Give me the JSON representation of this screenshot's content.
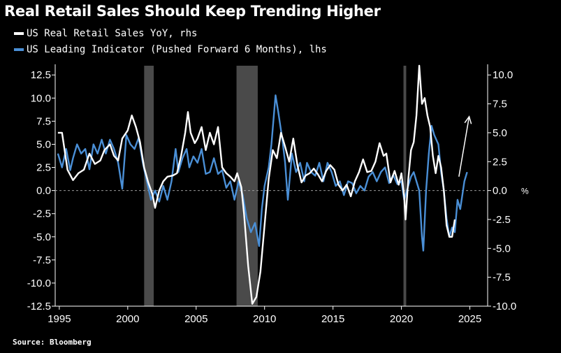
{
  "chart_data": {
    "type": "line",
    "title": "Real Retail Sales Should Keep Trending Higher",
    "source": "Source: Bloomberg",
    "x_range": [
      1994.7,
      2026.3
    ],
    "x_ticks": [
      1995,
      2000,
      2005,
      2010,
      2015,
      2020,
      2025
    ],
    "left_axis": {
      "ticks": [
        12.5,
        10.0,
        7.5,
        5.0,
        2.5,
        0.0,
        -2.5,
        -5.0,
        -7.5,
        -10.0,
        -12.5
      ],
      "range": [
        -12.5,
        13.5
      ]
    },
    "right_axis": {
      "ticks": [
        10.0,
        7.5,
        5.0,
        2.5,
        0.0,
        -2.5,
        -5.0,
        -7.5,
        -10.0
      ],
      "range": [
        -10.0,
        10.8
      ],
      "unit": "%"
    },
    "recessions": [
      [
        2001.2,
        2001.9
      ],
      [
        2007.95,
        2009.5
      ],
      [
        2020.15,
        2020.35
      ]
    ],
    "zero_line": true,
    "series": [
      {
        "name": "US Real Retail Sales YoY, rhs",
        "axis": "right",
        "color": "#ffffff",
        "points": [
          [
            1994.9,
            5
          ],
          [
            1995.2,
            5
          ],
          [
            1995.6,
            1.8
          ],
          [
            1996.0,
            0.9
          ],
          [
            1996.4,
            1.5
          ],
          [
            1996.8,
            1.8
          ],
          [
            1997.2,
            3.2
          ],
          [
            1997.6,
            2.3
          ],
          [
            1998.0,
            2.6
          ],
          [
            1998.3,
            3.5
          ],
          [
            1998.7,
            4
          ],
          [
            1999.0,
            3.0
          ],
          [
            1999.3,
            2.6
          ],
          [
            1999.6,
            4.5
          ],
          [
            2000.0,
            5.2
          ],
          [
            2000.3,
            6.5
          ],
          [
            2000.6,
            5.5
          ],
          [
            2000.9,
            4.2
          ],
          [
            2001.2,
            2
          ],
          [
            2001.5,
            0.7
          ],
          [
            2001.8,
            -0.3
          ],
          [
            2002.0,
            -1.5
          ],
          [
            2002.3,
            0
          ],
          [
            2002.6,
            0.8
          ],
          [
            2002.9,
            1.2
          ],
          [
            2003.3,
            1.3
          ],
          [
            2003.6,
            1.5
          ],
          [
            2003.9,
            3
          ],
          [
            2004.2,
            5
          ],
          [
            2004.4,
            6.8
          ],
          [
            2004.6,
            5
          ],
          [
            2004.9,
            4.1
          ],
          [
            2005.1,
            4.5
          ],
          [
            2005.4,
            5.5
          ],
          [
            2005.7,
            3.5
          ],
          [
            2006.0,
            5
          ],
          [
            2006.3,
            4
          ],
          [
            2006.6,
            5.5
          ],
          [
            2006.9,
            2
          ],
          [
            2007.2,
            1.5
          ],
          [
            2007.5,
            1.2
          ],
          [
            2007.8,
            0.8
          ],
          [
            2008.0,
            1.5
          ],
          [
            2008.3,
            0.3
          ],
          [
            2008.5,
            -2
          ],
          [
            2008.8,
            -6.5
          ],
          [
            2009.1,
            -9.8
          ],
          [
            2009.4,
            -9.2
          ],
          [
            2009.7,
            -7
          ],
          [
            2010.0,
            -3
          ],
          [
            2010.3,
            1
          ],
          [
            2010.6,
            3.5
          ],
          [
            2010.9,
            2.8
          ],
          [
            2011.2,
            5
          ],
          [
            2011.5,
            3.8
          ],
          [
            2011.8,
            2.5
          ],
          [
            2012.1,
            4.5
          ],
          [
            2012.4,
            2.2
          ],
          [
            2012.7,
            0.7
          ],
          [
            2013.0,
            1.3
          ],
          [
            2013.3,
            1.5
          ],
          [
            2013.6,
            1.9
          ],
          [
            2013.9,
            1.4
          ],
          [
            2014.2,
            0.8
          ],
          [
            2014.5,
            1.7
          ],
          [
            2014.8,
            2.2
          ],
          [
            2015.1,
            1.8
          ],
          [
            2015.4,
            0.5
          ],
          [
            2015.7,
            0
          ],
          [
            2016.0,
            0.5
          ],
          [
            2016.3,
            -0.5
          ],
          [
            2016.6,
            0.8
          ],
          [
            2016.9,
            1.6
          ],
          [
            2017.2,
            2.7
          ],
          [
            2017.5,
            1.6
          ],
          [
            2017.8,
            1.7
          ],
          [
            2018.1,
            2.5
          ],
          [
            2018.4,
            4.1
          ],
          [
            2018.7,
            3
          ],
          [
            2018.9,
            3.2
          ],
          [
            2019.2,
            0.7
          ],
          [
            2019.5,
            1.7
          ],
          [
            2019.8,
            0.5
          ],
          [
            2020.0,
            1.5
          ],
          [
            2020.2,
            -0.5
          ],
          [
            2020.3,
            -2.5
          ],
          [
            2020.5,
            1
          ],
          [
            2020.7,
            3.5
          ],
          [
            2020.9,
            4.2
          ],
          [
            2021.1,
            6.5
          ],
          [
            2021.3,
            10.8
          ],
          [
            2021.5,
            7.5
          ],
          [
            2021.7,
            8
          ],
          [
            2021.9,
            6.5
          ],
          [
            2022.1,
            5.5
          ],
          [
            2022.3,
            3
          ],
          [
            2022.5,
            1.5
          ],
          [
            2022.7,
            3
          ],
          [
            2022.9,
            2
          ],
          [
            2023.1,
            0
          ],
          [
            2023.3,
            -3
          ],
          [
            2023.5,
            -4
          ],
          [
            2023.7,
            -4
          ],
          [
            2023.9,
            -2.5
          ]
        ]
      },
      {
        "name": "US Leading Indicator (Pushed Forward 6 Months), lhs",
        "axis": "left",
        "color": "#4a8fd6",
        "points": [
          [
            1994.9,
            4
          ],
          [
            1995.2,
            2.5
          ],
          [
            1995.5,
            4.5
          ],
          [
            1995.8,
            2.2
          ],
          [
            1996.0,
            3.5
          ],
          [
            1996.3,
            5
          ],
          [
            1996.6,
            4
          ],
          [
            1996.9,
            4.5
          ],
          [
            1997.2,
            2.3
          ],
          [
            1997.5,
            5
          ],
          [
            1997.8,
            4
          ],
          [
            1998.1,
            5.5
          ],
          [
            1998.4,
            4
          ],
          [
            1998.7,
            5.5
          ],
          [
            1999.0,
            4.5
          ],
          [
            1999.3,
            3
          ],
          [
            1999.6,
            0.2
          ],
          [
            1999.9,
            6
          ],
          [
            2000.2,
            5
          ],
          [
            2000.5,
            4.5
          ],
          [
            2000.8,
            5.7
          ],
          [
            2001.1,
            3
          ],
          [
            2001.4,
            1
          ],
          [
            2001.7,
            -1
          ],
          [
            2002.0,
            0
          ],
          [
            2002.3,
            -1.2
          ],
          [
            2002.6,
            0.5
          ],
          [
            2002.9,
            -1
          ],
          [
            2003.2,
            1
          ],
          [
            2003.5,
            4.5
          ],
          [
            2003.7,
            2
          ],
          [
            2004.0,
            3.5
          ],
          [
            2004.3,
            4.5
          ],
          [
            2004.5,
            2.5
          ],
          [
            2004.8,
            3.7
          ],
          [
            2005.1,
            3
          ],
          [
            2005.4,
            4.5
          ],
          [
            2005.7,
            1.8
          ],
          [
            2006.0,
            2
          ],
          [
            2006.3,
            3.5
          ],
          [
            2006.6,
            1.8
          ],
          [
            2006.9,
            2.2
          ],
          [
            2007.2,
            0.3
          ],
          [
            2007.5,
            1
          ],
          [
            2007.8,
            -1
          ],
          [
            2008.1,
            1
          ],
          [
            2008.4,
            -0.5
          ],
          [
            2008.7,
            -3
          ],
          [
            2009.0,
            -4.5
          ],
          [
            2009.3,
            -3.5
          ],
          [
            2009.6,
            -6
          ],
          [
            2009.8,
            -2
          ],
          [
            2010.0,
            0.5
          ],
          [
            2010.3,
            2.5
          ],
          [
            2010.5,
            5
          ],
          [
            2010.8,
            10.3
          ],
          [
            2011.0,
            8.5
          ],
          [
            2011.3,
            5.5
          ],
          [
            2011.5,
            3
          ],
          [
            2011.7,
            -1
          ],
          [
            2012.0,
            4
          ],
          [
            2012.3,
            2
          ],
          [
            2012.6,
            3
          ],
          [
            2012.9,
            1
          ],
          [
            2013.1,
            3
          ],
          [
            2013.4,
            2
          ],
          [
            2013.7,
            1.6
          ],
          [
            2014.0,
            3
          ],
          [
            2014.3,
            1
          ],
          [
            2014.6,
            3
          ],
          [
            2014.9,
            2
          ],
          [
            2015.2,
            0.5
          ],
          [
            2015.5,
            1
          ],
          [
            2015.8,
            -0.5
          ],
          [
            2016.1,
            1
          ],
          [
            2016.4,
            0.8
          ],
          [
            2016.7,
            -0.3
          ],
          [
            2017.0,
            0.5
          ],
          [
            2017.3,
            0
          ],
          [
            2017.6,
            1.5
          ],
          [
            2017.9,
            2
          ],
          [
            2018.2,
            1
          ],
          [
            2018.5,
            2
          ],
          [
            2018.8,
            2.5
          ],
          [
            2019.1,
            0.8
          ],
          [
            2019.4,
            1.7
          ],
          [
            2019.7,
            0.7
          ],
          [
            2020.0,
            1
          ],
          [
            2020.2,
            -1
          ],
          [
            2020.4,
            0
          ],
          [
            2020.7,
            1.5
          ],
          [
            2020.9,
            2
          ],
          [
            2021.1,
            1
          ],
          [
            2021.3,
            0
          ],
          [
            2021.5,
            -5
          ],
          [
            2021.6,
            -6.5
          ],
          [
            2021.8,
            0
          ],
          [
            2022.0,
            4
          ],
          [
            2022.2,
            7
          ],
          [
            2022.4,
            6
          ],
          [
            2022.7,
            5
          ],
          [
            2022.9,
            2
          ],
          [
            2023.1,
            0
          ],
          [
            2023.3,
            -3
          ],
          [
            2023.5,
            -5
          ],
          [
            2023.7,
            -4
          ],
          [
            2023.9,
            -4.5
          ],
          [
            2024.1,
            -1
          ],
          [
            2024.3,
            -2
          ],
          [
            2024.6,
            1
          ],
          [
            2024.8,
            2
          ]
        ]
      }
    ],
    "annotation_arrow": {
      "from": [
        2024.2,
        1.5
      ],
      "to": [
        2024.95,
        8
      ]
    }
  }
}
